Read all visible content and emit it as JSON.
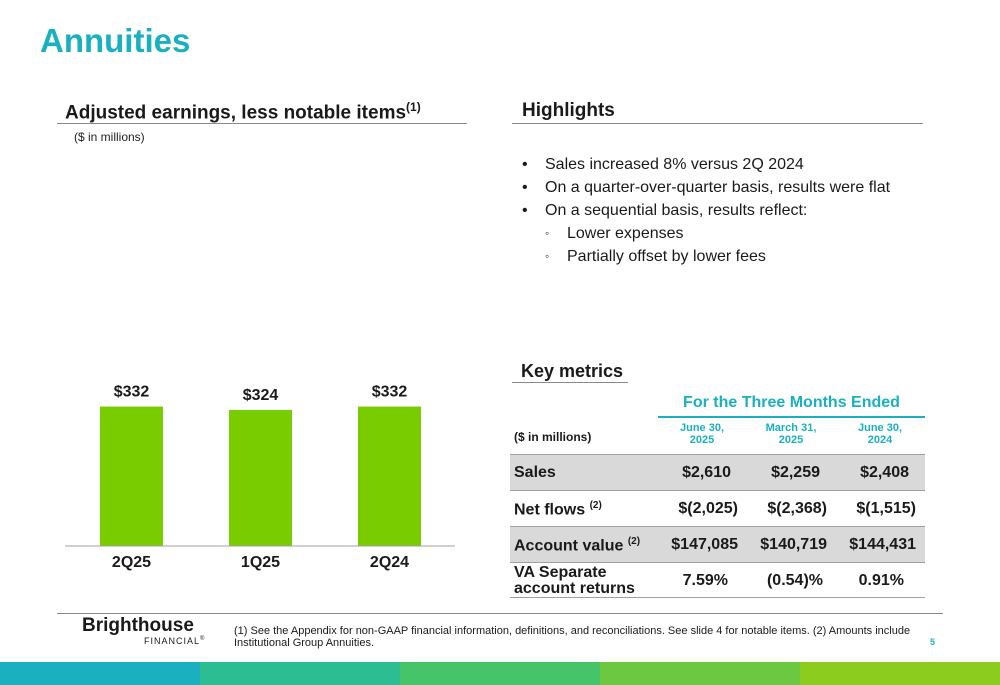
{
  "page": {
    "title": "Annuities",
    "page_number": "5"
  },
  "left_section": {
    "title": "Adjusted earnings, less notable items",
    "title_note": "(1)",
    "unit": "($ in millions)"
  },
  "chart_data": {
    "type": "bar",
    "categories": [
      "2Q25",
      "1Q25",
      "2Q24"
    ],
    "values": [
      332,
      324,
      332
    ],
    "data_labels": [
      "$332",
      "$324",
      "$332"
    ],
    "title": "Adjusted earnings, less notable items",
    "ylabel": "($ in millions)",
    "xlabel": "",
    "grid": false,
    "bar_color": "#78cc00"
  },
  "highlights": {
    "title": "Highlights",
    "items": [
      {
        "text": "Sales increased 8% versus 2Q 2024",
        "bullet": "•"
      },
      {
        "text": "On a quarter-over-quarter basis, results were flat",
        "bullet": "•"
      },
      {
        "text": "On a sequential basis, results reflect:",
        "bullet": "•"
      }
    ],
    "subitems": [
      {
        "text": "Lower expenses",
        "bullet": "◦"
      },
      {
        "text": "Partially offset by lower fees",
        "bullet": "◦"
      }
    ]
  },
  "key_metrics": {
    "title": "Key metrics",
    "group_header": "For the Three Months Ended",
    "unit_label": "($ in millions)",
    "columns": [
      {
        "line1": "June 30,",
        "line2": "2025"
      },
      {
        "line1": "March 31,",
        "line2": "2025"
      },
      {
        "line1": "June 30,",
        "line2": "2024"
      }
    ],
    "rows": [
      {
        "label": "Sales",
        "note": "",
        "values": [
          "$2,610",
          "$2,259",
          "$2,408"
        ]
      },
      {
        "label": "Net flows",
        "note": "(2)",
        "values": [
          "$(2,025)",
          "$(2,368)",
          "$(1,515)"
        ]
      },
      {
        "label": "Account value",
        "note": "(2)",
        "values": [
          "$147,085",
          "$140,719",
          "$144,431"
        ]
      },
      {
        "label_line1": "VA Separate",
        "label_line2": "account returns",
        "values": [
          "7.59%",
          "(0.54)%",
          "0.91%"
        ]
      }
    ]
  },
  "footer": {
    "logo_main": "Brighthouse",
    "logo_sub": "FINANCIAL",
    "logo_mark": "®",
    "note": "(1) See the Appendix for non-GAAP financial information, definitions, and reconciliations. See slide 4 for notable items. (2) Amounts include Institutional Group Annuities."
  },
  "colors": {
    "accent": "#1ab0c0",
    "bar": "#78cc00",
    "band": [
      "#1ab0c0",
      "#2cbd92",
      "#45c46a",
      "#6cc840",
      "#8ccc1e"
    ]
  }
}
